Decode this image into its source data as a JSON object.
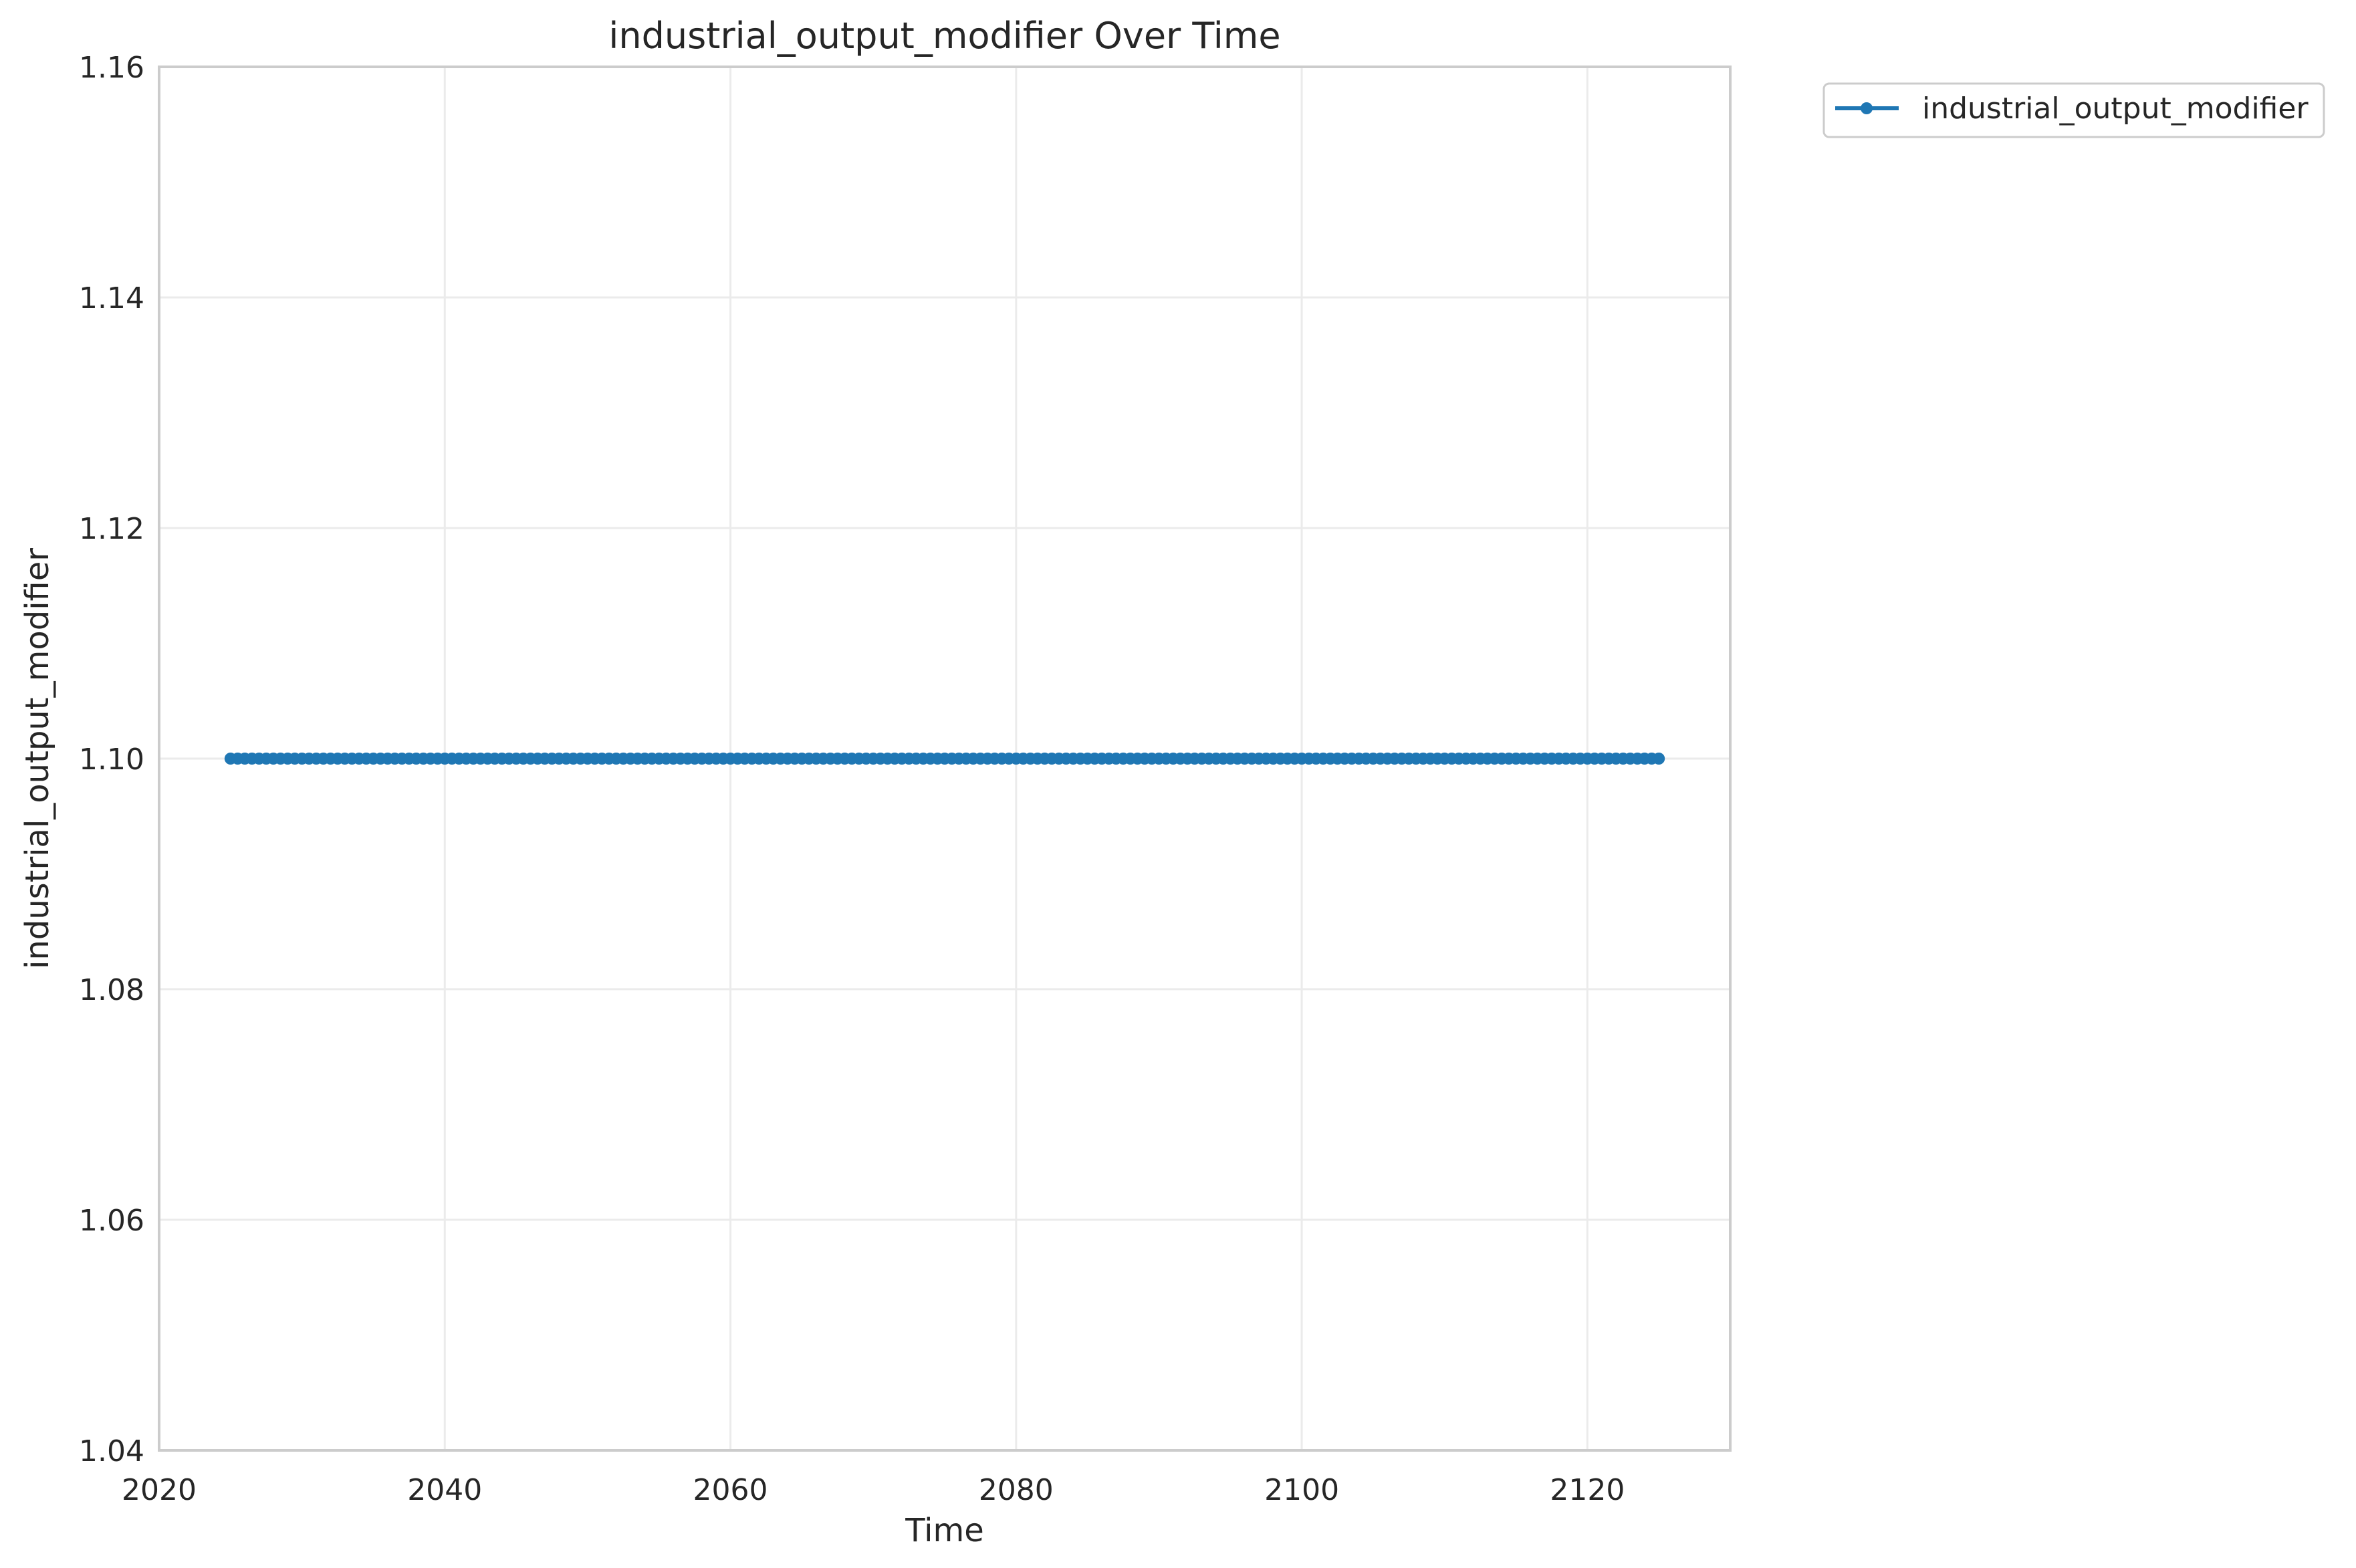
{
  "chart_data": {
    "type": "line",
    "title": "industrial_output_modifier Over Time",
    "xlabel": "Time",
    "ylabel": "industrial_output_modifier",
    "xlim": [
      2020,
      2130
    ],
    "ylim": [
      1.04,
      1.16
    ],
    "xticks": [
      2020,
      2040,
      2060,
      2080,
      2100,
      2120
    ],
    "yticks": [
      1.04,
      1.06,
      1.08,
      1.1,
      1.12,
      1.14,
      1.16
    ],
    "ytick_labels": [
      "1.04",
      "1.06",
      "1.08",
      "1.10",
      "1.12",
      "1.14",
      "1.16"
    ],
    "grid": true,
    "legend_position": "outside-top-right",
    "series": [
      {
        "name": "industrial_output_modifier",
        "color": "#1f77b4",
        "marker": "circle",
        "x_start": 2025,
        "x_end": 2125,
        "x_step": 0.5,
        "value": 1.1
      }
    ]
  }
}
